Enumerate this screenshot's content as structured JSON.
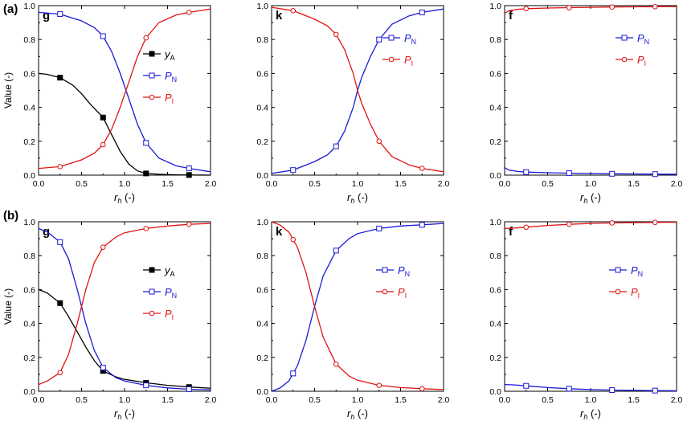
{
  "row_labels": [
    "(a)",
    "(b)"
  ],
  "colors": {
    "yA": "#000000",
    "PN": "#1a1ad6",
    "PI": "#e01414",
    "axis": "#000000"
  },
  "chart_data": [
    {
      "type": "line",
      "row": "(a)",
      "panel_letter": "g",
      "legend_position": "right-middle",
      "xlabel_main": "r",
      "xlabel_sub": "h",
      "xlabel_unit": "(-)",
      "ylabel": "Value (-)",
      "xlim": [
        0,
        2.0
      ],
      "ylim": [
        0,
        1.0
      ],
      "xticks": [
        "0.0",
        "0.5",
        "1.0",
        "1.5",
        "2.0"
      ],
      "yticks": [
        "0.0",
        "0.2",
        "0.4",
        "0.6",
        "0.8",
        "1.0"
      ],
      "series": [
        {
          "key": "yA",
          "name_main": "y",
          "name_sub": "A",
          "marker": "filled-square",
          "x": [
            0,
            0.1,
            0.25,
            0.4,
            0.5,
            0.6,
            0.75,
            0.85,
            0.95,
            1.05,
            1.15,
            1.25,
            1.4,
            1.6,
            1.75,
            2.0
          ],
          "y": [
            0.6,
            0.595,
            0.575,
            0.53,
            0.48,
            0.42,
            0.34,
            0.24,
            0.14,
            0.065,
            0.025,
            0.01,
            0.005,
            0.002,
            0.001,
            0.0
          ]
        },
        {
          "key": "PN",
          "name_main": "P",
          "name_sub": "N",
          "marker": "open-square",
          "x": [
            0,
            0.25,
            0.5,
            0.65,
            0.75,
            0.85,
            0.95,
            1.05,
            1.15,
            1.25,
            1.4,
            1.6,
            1.75,
            2.0
          ],
          "y": [
            0.96,
            0.95,
            0.91,
            0.87,
            0.82,
            0.73,
            0.6,
            0.45,
            0.3,
            0.19,
            0.1,
            0.055,
            0.04,
            0.02
          ]
        },
        {
          "key": "PI",
          "name_main": "P",
          "name_sub": "I",
          "marker": "open-circle",
          "x": [
            0,
            0.25,
            0.5,
            0.65,
            0.75,
            0.85,
            0.95,
            1.05,
            1.15,
            1.25,
            1.4,
            1.6,
            1.75,
            2.0
          ],
          "y": [
            0.04,
            0.05,
            0.09,
            0.13,
            0.18,
            0.27,
            0.4,
            0.55,
            0.7,
            0.81,
            0.9,
            0.945,
            0.96,
            0.98
          ]
        }
      ],
      "marker_x": [
        0.25,
        0.75,
        1.25,
        1.75
      ]
    },
    {
      "type": "line",
      "row": "(a)",
      "panel_letter": "k",
      "legend_position": "top-right",
      "xlabel_main": "r",
      "xlabel_sub": "h",
      "xlabel_unit": "(-)",
      "ylabel": "",
      "xlim": [
        0,
        2.0
      ],
      "ylim": [
        0,
        1.0
      ],
      "xticks": [
        "0.0",
        "0.5",
        "1.0",
        "1.5",
        "2.0"
      ],
      "yticks": [
        "0.0",
        "0.2",
        "0.4",
        "0.6",
        "0.8",
        "1.0"
      ],
      "series": [
        {
          "key": "PN",
          "name_main": "P",
          "name_sub": "N",
          "marker": "open-square",
          "x": [
            0,
            0.25,
            0.5,
            0.65,
            0.75,
            0.85,
            0.95,
            1.0,
            1.05,
            1.15,
            1.25,
            1.4,
            1.6,
            1.75,
            2.0
          ],
          "y": [
            0.01,
            0.03,
            0.08,
            0.12,
            0.17,
            0.26,
            0.4,
            0.5,
            0.58,
            0.7,
            0.8,
            0.89,
            0.94,
            0.96,
            0.98
          ]
        },
        {
          "key": "PI",
          "name_main": "P",
          "name_sub": "I",
          "marker": "open-circle",
          "x": [
            0,
            0.25,
            0.5,
            0.65,
            0.75,
            0.85,
            0.95,
            1.0,
            1.05,
            1.15,
            1.25,
            1.4,
            1.6,
            1.75,
            2.0
          ],
          "y": [
            0.99,
            0.97,
            0.92,
            0.88,
            0.83,
            0.74,
            0.6,
            0.5,
            0.42,
            0.3,
            0.2,
            0.11,
            0.06,
            0.04,
            0.02
          ]
        }
      ],
      "marker_x": [
        0.25,
        0.75,
        1.25,
        1.75
      ]
    },
    {
      "type": "line",
      "row": "(a)",
      "panel_letter": "f",
      "legend_position": "top-right",
      "xlabel_main": "r",
      "xlabel_sub": "h",
      "xlabel_unit": "(-)",
      "ylabel": "",
      "xlim": [
        0,
        2.0
      ],
      "ylim": [
        0,
        1.0
      ],
      "xticks": [
        "0.0",
        "0.5",
        "1.0",
        "1.5",
        "2.0"
      ],
      "yticks": [
        "0.0",
        "0.2",
        "0.4",
        "0.6",
        "0.8",
        "1.0"
      ],
      "series": [
        {
          "key": "PN",
          "name_main": "P",
          "name_sub": "N",
          "marker": "open-square",
          "x": [
            0,
            0.05,
            0.15,
            0.25,
            0.5,
            0.75,
            1.0,
            1.25,
            1.5,
            1.75,
            2.0
          ],
          "y": [
            0.045,
            0.03,
            0.022,
            0.018,
            0.014,
            0.012,
            0.01,
            0.008,
            0.007,
            0.006,
            0.005
          ]
        },
        {
          "key": "PI",
          "name_main": "P",
          "name_sub": "I",
          "marker": "open-circle",
          "x": [
            0,
            0.05,
            0.15,
            0.25,
            0.5,
            0.75,
            1.0,
            1.25,
            1.5,
            1.75,
            2.0
          ],
          "y": [
            0.955,
            0.97,
            0.978,
            0.982,
            0.986,
            0.988,
            0.99,
            0.992,
            0.993,
            0.994,
            0.995
          ]
        }
      ],
      "marker_x": [
        0.25,
        0.75,
        1.25,
        1.75
      ]
    },
    {
      "type": "line",
      "row": "(b)",
      "panel_letter": "g",
      "legend_position": "right-middle",
      "xlabel_main": "r",
      "xlabel_sub": "h",
      "xlabel_unit": "(-)",
      "ylabel": "Value (-)",
      "xlim": [
        0,
        2.0
      ],
      "ylim": [
        0,
        1.0
      ],
      "xticks": [
        "0.0",
        "0.5",
        "1.0",
        "1.5",
        "2.0"
      ],
      "yticks": [
        "0.0",
        "0.2",
        "0.4",
        "0.6",
        "0.8",
        "1.0"
      ],
      "series": [
        {
          "key": "yA",
          "name_main": "y",
          "name_sub": "A",
          "marker": "filled-square",
          "x": [
            0,
            0.1,
            0.25,
            0.35,
            0.45,
            0.55,
            0.65,
            0.75,
            0.9,
            1.0,
            1.25,
            1.5,
            1.75,
            2.0
          ],
          "y": [
            0.6,
            0.58,
            0.52,
            0.44,
            0.35,
            0.26,
            0.18,
            0.12,
            0.085,
            0.07,
            0.05,
            0.035,
            0.025,
            0.018
          ]
        },
        {
          "key": "PN",
          "name_main": "P",
          "name_sub": "N",
          "marker": "open-square",
          "x": [
            0,
            0.1,
            0.25,
            0.35,
            0.45,
            0.55,
            0.65,
            0.75,
            0.9,
            1.0,
            1.25,
            1.5,
            1.75,
            2.0
          ],
          "y": [
            0.96,
            0.94,
            0.88,
            0.78,
            0.6,
            0.4,
            0.24,
            0.14,
            0.08,
            0.06,
            0.035,
            0.02,
            0.012,
            0.008
          ]
        },
        {
          "key": "PI",
          "name_main": "P",
          "name_sub": "I",
          "marker": "open-circle",
          "x": [
            0,
            0.1,
            0.25,
            0.35,
            0.45,
            0.55,
            0.65,
            0.75,
            0.9,
            1.0,
            1.25,
            1.5,
            1.75,
            2.0
          ],
          "y": [
            0.04,
            0.06,
            0.11,
            0.22,
            0.4,
            0.6,
            0.76,
            0.85,
            0.91,
            0.935,
            0.96,
            0.975,
            0.985,
            0.99
          ]
        }
      ],
      "marker_x": [
        0.25,
        0.75,
        1.25,
        1.75
      ]
    },
    {
      "type": "line",
      "row": "(b)",
      "panel_letter": "k",
      "legend_position": "right-middle",
      "xlabel_main": "r",
      "xlabel_sub": "h",
      "xlabel_unit": "(-)",
      "ylabel": "",
      "xlim": [
        0,
        2.0
      ],
      "ylim": [
        0,
        1.0
      ],
      "xticks": [
        "0.0",
        "0.5",
        "1.0",
        "1.5",
        "2.0"
      ],
      "yticks": [
        "0.0",
        "0.2",
        "0.4",
        "0.6",
        "0.8",
        "1.0"
      ],
      "series": [
        {
          "key": "PN",
          "name_main": "P",
          "name_sub": "N",
          "marker": "open-square",
          "x": [
            0,
            0.1,
            0.2,
            0.3,
            0.4,
            0.5,
            0.6,
            0.75,
            0.9,
            1.0,
            1.25,
            1.5,
            1.75,
            2.0
          ],
          "y": [
            0.0,
            0.02,
            0.06,
            0.15,
            0.3,
            0.5,
            0.68,
            0.83,
            0.9,
            0.93,
            0.96,
            0.975,
            0.982,
            0.99
          ]
        },
        {
          "key": "PI",
          "name_main": "P",
          "name_sub": "I",
          "marker": "open-circle",
          "x": [
            0,
            0.1,
            0.2,
            0.3,
            0.4,
            0.5,
            0.6,
            0.75,
            0.9,
            1.0,
            1.25,
            1.5,
            1.75,
            2.0
          ],
          "y": [
            1.0,
            0.98,
            0.94,
            0.85,
            0.7,
            0.5,
            0.32,
            0.16,
            0.09,
            0.065,
            0.035,
            0.022,
            0.015,
            0.01
          ]
        }
      ],
      "marker_x": [
        0.25,
        0.75,
        1.25,
        1.75
      ]
    },
    {
      "type": "line",
      "row": "(b)",
      "panel_letter": "f",
      "legend_position": "right-middle",
      "xlabel_main": "r",
      "xlabel_sub": "h",
      "xlabel_unit": "(-)",
      "ylabel": "",
      "xlim": [
        0,
        2.0
      ],
      "ylim": [
        0,
        1.0
      ],
      "xticks": [
        "0.0",
        "0.5",
        "1.0",
        "1.5",
        "2.0"
      ],
      "yticks": [
        "0.0",
        "0.2",
        "0.4",
        "0.6",
        "0.8",
        "1.0"
      ],
      "series": [
        {
          "key": "PN",
          "name_main": "P",
          "name_sub": "N",
          "marker": "open-square",
          "x": [
            0,
            0.1,
            0.25,
            0.5,
            0.75,
            1.0,
            1.25,
            1.5,
            1.75,
            2.0
          ],
          "y": [
            0.04,
            0.038,
            0.032,
            0.022,
            0.015,
            0.01,
            0.007,
            0.005,
            0.004,
            0.003
          ]
        },
        {
          "key": "PI",
          "name_main": "P",
          "name_sub": "I",
          "marker": "open-circle",
          "x": [
            0,
            0.1,
            0.25,
            0.5,
            0.75,
            1.0,
            1.25,
            1.5,
            1.75,
            2.0
          ],
          "y": [
            0.96,
            0.962,
            0.968,
            0.978,
            0.985,
            0.99,
            0.993,
            0.995,
            0.996,
            0.997
          ]
        }
      ],
      "marker_x": [
        0.25,
        0.75,
        1.25,
        1.75
      ]
    }
  ]
}
